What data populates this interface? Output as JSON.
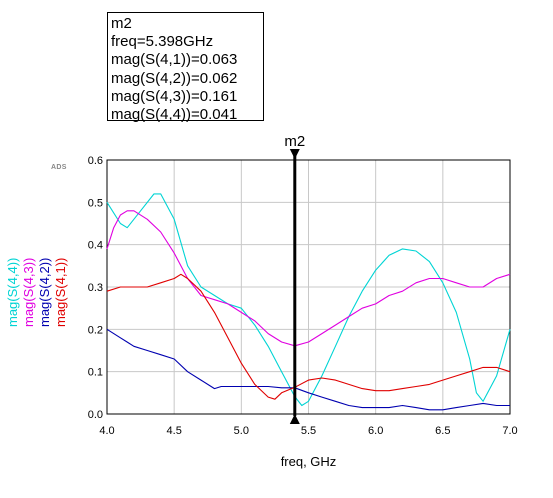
{
  "marker_readout": {
    "name": "m2",
    "freq": "freq=5.398GHz",
    "lines": [
      "mag(S(4,1))=0.063",
      "mag(S(4,2))=0.062",
      "mag(S(4,3))=0.161",
      "mag(S(4,4))=0.041"
    ]
  },
  "logo": "ADS",
  "chart_data": {
    "type": "line",
    "xlabel": "freq, GHz",
    "xlim": [
      4.0,
      7.0
    ],
    "ylim": [
      0.0,
      0.6
    ],
    "xticks": [
      "4.0",
      "4.5",
      "5.0",
      "5.5",
      "6.0",
      "6.5",
      "7.0"
    ],
    "yticks": [
      "0.0",
      "0.1",
      "0.2",
      "0.3",
      "0.4",
      "0.5",
      "0.6"
    ],
    "grid": true,
    "marker": {
      "label": "m2",
      "x": 5.398
    },
    "series": [
      {
        "name": "mag(S(4,4))",
        "color": "#00d4d4",
        "x": [
          4.0,
          4.1,
          4.15,
          4.25,
          4.35,
          4.4,
          4.5,
          4.6,
          4.7,
          4.9,
          5.0,
          5.1,
          5.2,
          5.3,
          5.398,
          5.45,
          5.5,
          5.6,
          5.7,
          5.8,
          5.9,
          6.0,
          6.1,
          6.2,
          6.3,
          6.4,
          6.5,
          6.6,
          6.7,
          6.75,
          6.8,
          6.9,
          7.0
        ],
        "y": [
          0.5,
          0.45,
          0.44,
          0.48,
          0.52,
          0.52,
          0.46,
          0.35,
          0.3,
          0.26,
          0.25,
          0.21,
          0.16,
          0.1,
          0.041,
          0.02,
          0.03,
          0.09,
          0.16,
          0.23,
          0.29,
          0.34,
          0.375,
          0.39,
          0.385,
          0.36,
          0.31,
          0.24,
          0.13,
          0.05,
          0.03,
          0.09,
          0.2
        ]
      },
      {
        "name": "mag(S(4,3))",
        "color": "#e000e0",
        "x": [
          4.0,
          4.05,
          4.1,
          4.15,
          4.2,
          4.3,
          4.4,
          4.5,
          4.6,
          4.7,
          4.8,
          4.9,
          5.0,
          5.1,
          5.2,
          5.3,
          5.398,
          5.5,
          5.6,
          5.7,
          5.8,
          5.9,
          6.0,
          6.1,
          6.2,
          6.3,
          6.4,
          6.5,
          6.6,
          6.7,
          6.8,
          6.9,
          7.0
        ],
        "y": [
          0.39,
          0.44,
          0.47,
          0.48,
          0.48,
          0.46,
          0.43,
          0.38,
          0.32,
          0.28,
          0.27,
          0.26,
          0.24,
          0.22,
          0.19,
          0.17,
          0.161,
          0.17,
          0.19,
          0.21,
          0.23,
          0.25,
          0.26,
          0.28,
          0.29,
          0.31,
          0.32,
          0.32,
          0.31,
          0.3,
          0.3,
          0.32,
          0.33
        ]
      },
      {
        "name": "mag(S(4,2))",
        "color": "#0000b0",
        "x": [
          4.0,
          4.1,
          4.2,
          4.3,
          4.4,
          4.5,
          4.6,
          4.7,
          4.8,
          4.85,
          4.9,
          5.0,
          5.1,
          5.2,
          5.3,
          5.398,
          5.5,
          5.6,
          5.7,
          5.8,
          5.9,
          6.0,
          6.1,
          6.2,
          6.3,
          6.4,
          6.5,
          6.6,
          6.7,
          6.8,
          6.9,
          7.0
        ],
        "y": [
          0.2,
          0.18,
          0.16,
          0.15,
          0.14,
          0.13,
          0.1,
          0.08,
          0.06,
          0.065,
          0.065,
          0.065,
          0.065,
          0.065,
          0.062,
          0.062,
          0.05,
          0.04,
          0.03,
          0.02,
          0.015,
          0.015,
          0.015,
          0.02,
          0.015,
          0.01,
          0.01,
          0.015,
          0.02,
          0.025,
          0.02,
          0.02
        ]
      },
      {
        "name": "mag(S(4,1))",
        "color": "#e00000",
        "x": [
          4.0,
          4.1,
          4.2,
          4.3,
          4.4,
          4.5,
          4.55,
          4.6,
          4.7,
          4.8,
          4.9,
          5.0,
          5.1,
          5.2,
          5.25,
          5.3,
          5.398,
          5.5,
          5.6,
          5.7,
          5.8,
          5.9,
          6.0,
          6.1,
          6.2,
          6.3,
          6.4,
          6.5,
          6.6,
          6.7,
          6.8,
          6.9,
          7.0
        ],
        "y": [
          0.29,
          0.3,
          0.3,
          0.3,
          0.31,
          0.32,
          0.33,
          0.32,
          0.29,
          0.24,
          0.18,
          0.12,
          0.07,
          0.04,
          0.035,
          0.05,
          0.063,
          0.08,
          0.085,
          0.08,
          0.07,
          0.06,
          0.055,
          0.055,
          0.06,
          0.065,
          0.07,
          0.08,
          0.09,
          0.1,
          0.11,
          0.11,
          0.1
        ]
      }
    ]
  }
}
